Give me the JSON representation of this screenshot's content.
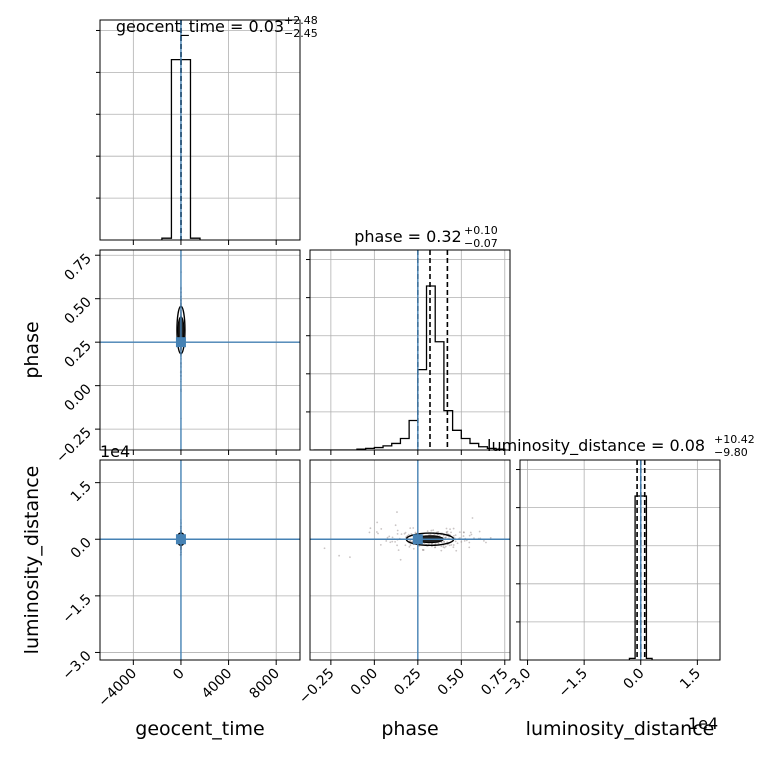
{
  "figure": {
    "titles": [
      {
        "name": "geocent_time",
        "median": "0.03",
        "plus": "+2.48",
        "minus": "−2.45"
      },
      {
        "name": "phase",
        "median": "0.32",
        "plus": "+0.10",
        "minus": "−0.07"
      },
      {
        "name": "luminosity_distance",
        "median": "0.08",
        "plus": "+10.42",
        "minus": "−9.80"
      }
    ],
    "offset_labels": [
      "1e4",
      "1e4"
    ]
  },
  "colors": {
    "truth": "#4682b4",
    "hist": "#000000",
    "grid": "#b0b0b0",
    "scatter": "#8a7f7f"
  },
  "chart_data": {
    "type": "corner",
    "parameters": [
      "geocent_time",
      "phase",
      "luminosity_distance"
    ],
    "ranges": {
      "geocent_time": [
        -6800,
        10000
      ],
      "phase": [
        -0.37,
        0.78
      ],
      "luminosity_distance": [
        -3.2,
        2.1
      ]
    },
    "ticks": {
      "geocent_time": {
        "values": [
          -4000,
          0,
          4000,
          8000
        ],
        "labels": [
          "−4000",
          "0",
          "4000",
          "8000"
        ]
      },
      "phase_x": {
        "values": [
          -0.25,
          0.0,
          0.25,
          0.5,
          0.75
        ],
        "labels": [
          "−0.25",
          "0.00",
          "0.25",
          "0.50",
          "0.75"
        ]
      },
      "phase_y": {
        "values": [
          -0.25,
          0.0,
          0.25,
          0.5,
          0.75
        ],
        "labels": [
          "−0.25",
          "0.00",
          "0.25",
          "0.50",
          "0.75"
        ]
      },
      "luminosity_distance": {
        "values": [
          -3.0,
          -1.5,
          0.0,
          1.5
        ],
        "labels": [
          "−3.0",
          "−1.5",
          "0.0",
          "1.5"
        ]
      }
    },
    "truths": {
      "geocent_time": 0,
      "phase": 0.25,
      "luminosity_distance": 0
    },
    "quantiles": {
      "geocent_time": [
        -2.42,
        0.03,
        2.51
      ],
      "phase": [
        0.25,
        0.32,
        0.42
      ],
      "luminosity_distance": [
        -0.0972,
        0.0008,
        0.105
      ]
    },
    "histograms": {
      "geocent_time": {
        "edges": [
          -1600,
          -800,
          0,
          800,
          1600
        ],
        "counts": [
          0.01,
          1.0,
          1.0,
          0.01
        ]
      },
      "phase": {
        "edges": [
          -0.35,
          -0.3,
          -0.25,
          -0.2,
          -0.15,
          -0.1,
          -0.05,
          0.0,
          0.05,
          0.1,
          0.15,
          0.2,
          0.25,
          0.3,
          0.35,
          0.4,
          0.45,
          0.5,
          0.55,
          0.6,
          0.65,
          0.7,
          0.75
        ],
        "counts": [
          0.0,
          0.0,
          0.0,
          0.0,
          0.0,
          0.005,
          0.01,
          0.015,
          0.025,
          0.04,
          0.07,
          0.18,
          0.49,
          1.0,
          0.66,
          0.24,
          0.12,
          0.07,
          0.04,
          0.02,
          0.01,
          0.005
        ]
      },
      "luminosity_distance": {
        "edges": [
          -0.3,
          -0.15,
          0.0,
          0.15,
          0.3
        ],
        "counts": [
          0.01,
          1.0,
          1.0,
          0.01
        ]
      }
    },
    "grid": true
  }
}
